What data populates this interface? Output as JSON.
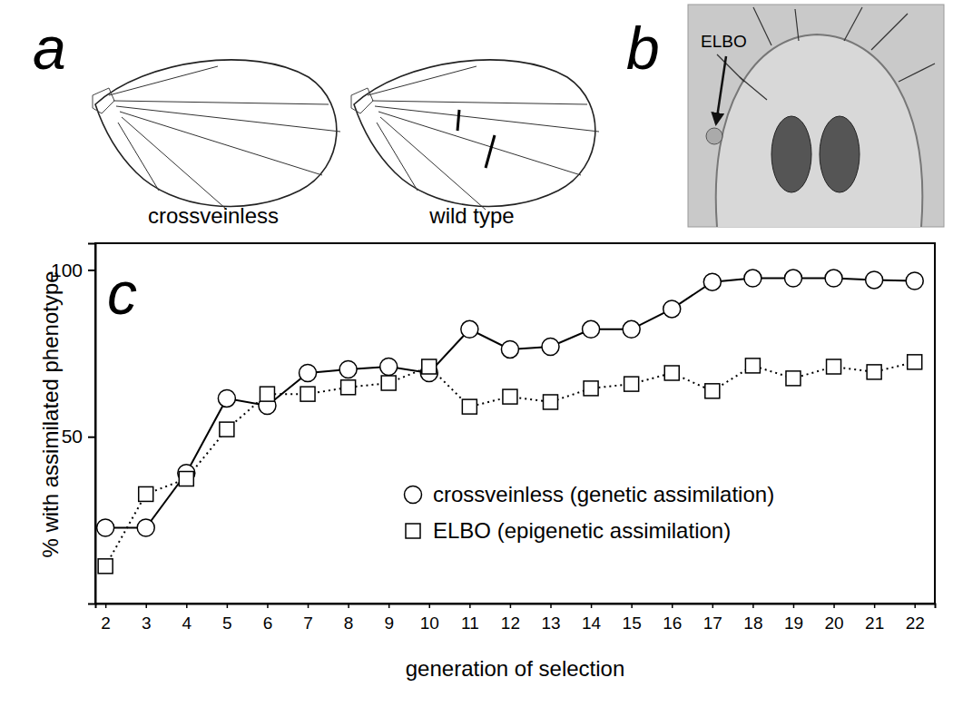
{
  "chart_data": {
    "type": "line",
    "x_label": "generation of selection",
    "y_label": "% with assimilated phenotype",
    "x": [
      2,
      3,
      4,
      5,
      6,
      7,
      8,
      9,
      10,
      11,
      12,
      13,
      14,
      15,
      16,
      17,
      18,
      19,
      20,
      21,
      22
    ],
    "series": [
      {
        "name": "crossveinless (genetic assimilation)",
        "color": "#000000",
        "marker": "circle",
        "line_style": "solid",
        "values": [
          22.7,
          22.7,
          39.1,
          61.5,
          59.3,
          69.1,
          70.2,
          71.0,
          69.1,
          82.2,
          76.2,
          77.0,
          82.2,
          82.2,
          88.3,
          96.4,
          97.5,
          97.5,
          97.5,
          97.0,
          96.7
        ]
      },
      {
        "name": "ELBO (epigenetic assimilation)",
        "color": "#000000",
        "marker": "square",
        "line_style": "dotted",
        "values": [
          11.2,
          32.8,
          37.4,
          52.2,
          62.8,
          62.8,
          64.8,
          66.1,
          71.0,
          59.0,
          62.0,
          60.4,
          64.5,
          65.8,
          69.1,
          63.7,
          71.3,
          67.5,
          71.0,
          69.4,
          72.4
        ]
      }
    ],
    "xlim": [
      1.75,
      22.5
    ],
    "xticks": [
      2,
      3,
      4,
      5,
      6,
      7,
      8,
      9,
      10,
      11,
      12,
      13,
      14,
      15,
      16,
      17,
      18,
      19,
      20,
      21,
      22
    ],
    "ylim": [
      0,
      108
    ],
    "yticks": [
      50,
      100
    ],
    "grid": false,
    "legend": "lower right"
  },
  "figure": {
    "panels": [
      {
        "label": "a",
        "captions": [
          "crossveinless",
          "wild type"
        ]
      },
      {
        "label": "b",
        "annotation": "ELBO"
      },
      {
        "label": "c"
      }
    ]
  }
}
